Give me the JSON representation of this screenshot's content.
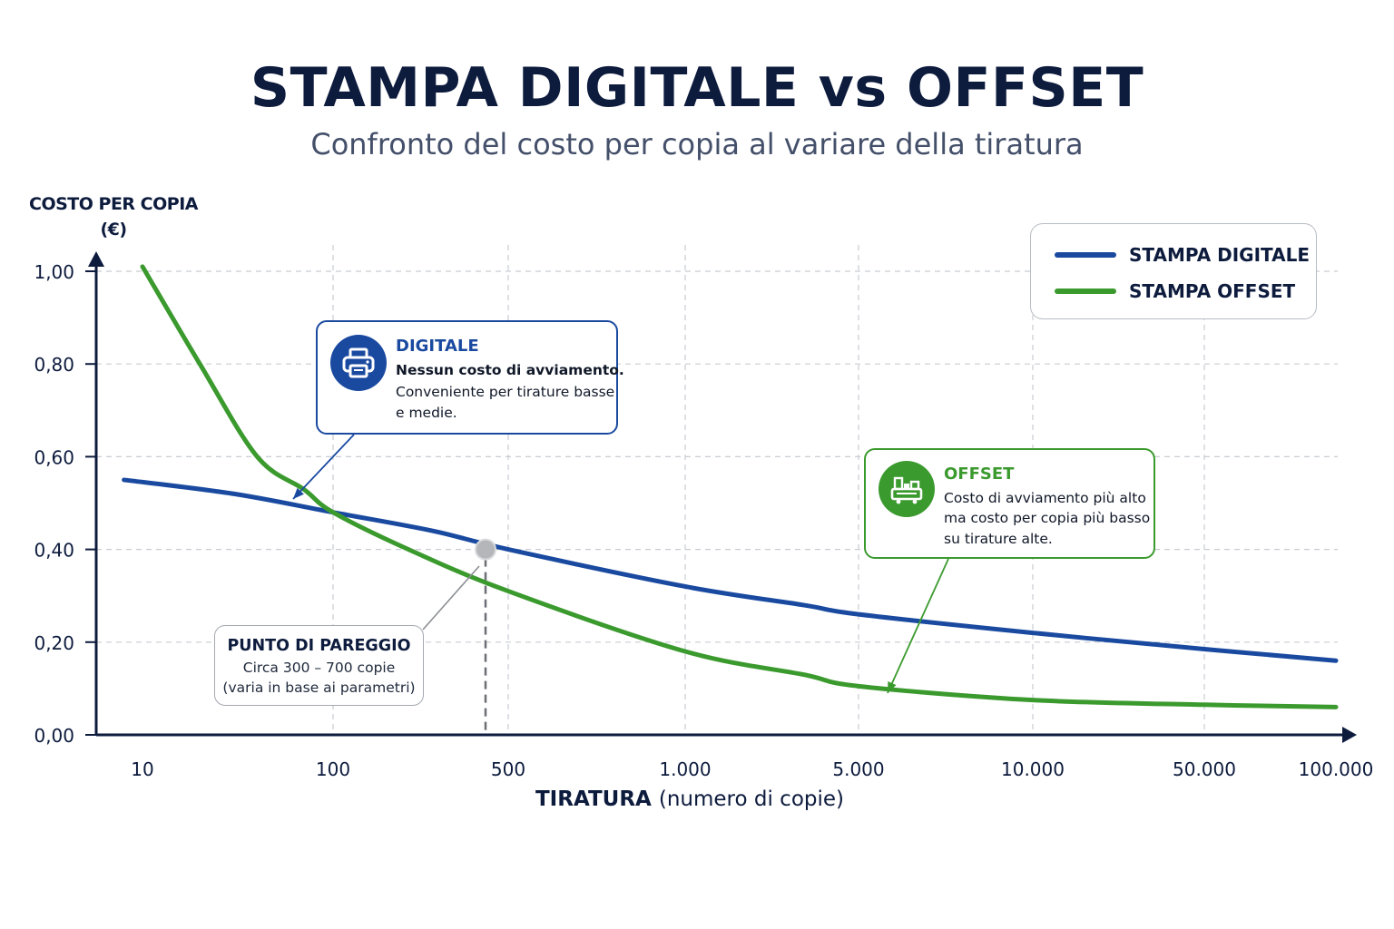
{
  "title": "STAMPA DIGITALE vs OFFSET",
  "subtitle": "Confronto del costo per copia al variare della tiratura",
  "chart_data": {
    "type": "line",
    "xlabel": "TIRATURA",
    "xlabel_unit": "(numero di copie)",
    "ylabel_line1": "COSTO PER COPIA",
    "ylabel_line2": "(€)",
    "y_ticks": [
      "0,00",
      "0,20",
      "0,40",
      "0,60",
      "0,80",
      "1,00"
    ],
    "y_tick_values": [
      0,
      0.2,
      0.4,
      0.6,
      0.8,
      1.0
    ],
    "ylim": [
      0,
      1.0
    ],
    "x_ticks": [
      "10",
      "100",
      "500",
      "1.000",
      "5.000",
      "10.000",
      "50.000",
      "100.000"
    ],
    "x_tick_values": [
      10,
      100,
      500,
      1000,
      5000,
      10000,
      50000,
      100000
    ],
    "grid": true,
    "legend_position": "top-right",
    "series": [
      {
        "name": "STAMPA DIGITALE",
        "color": "#1a4aa0",
        "points": [
          {
            "x": 8,
            "y": 0.55
          },
          {
            "x": 30,
            "y": 0.52
          },
          {
            "x": 100,
            "y": 0.48
          },
          {
            "x": 250,
            "y": 0.44
          },
          {
            "x": 500,
            "y": 0.4
          },
          {
            "x": 1000,
            "y": 0.32
          },
          {
            "x": 3000,
            "y": 0.28
          },
          {
            "x": 5000,
            "y": 0.26
          },
          {
            "x": 10000,
            "y": 0.22
          },
          {
            "x": 50000,
            "y": 0.185
          },
          {
            "x": 100000,
            "y": 0.16
          }
        ]
      },
      {
        "name": "STAMPA OFFSET",
        "color": "#3b9a2e",
        "points": [
          {
            "x": 10,
            "y": 1.01
          },
          {
            "x": 20,
            "y": 0.8
          },
          {
            "x": 40,
            "y": 0.6
          },
          {
            "x": 70,
            "y": 0.53
          },
          {
            "x": 100,
            "y": 0.48
          },
          {
            "x": 200,
            "y": 0.4
          },
          {
            "x": 500,
            "y": 0.31
          },
          {
            "x": 1000,
            "y": 0.18
          },
          {
            "x": 3000,
            "y": 0.13
          },
          {
            "x": 5000,
            "y": 0.105
          },
          {
            "x": 10000,
            "y": 0.075
          },
          {
            "x": 50000,
            "y": 0.065
          },
          {
            "x": 100000,
            "y": 0.06
          }
        ]
      }
    ],
    "break_even": {
      "x": 400,
      "y": 0.4
    }
  },
  "legend": {
    "digitale": "STAMPA DIGITALE",
    "offset": "STAMPA OFFSET"
  },
  "callouts": {
    "digitale": {
      "icon": "printer-icon",
      "title": "DIGITALE",
      "line1": "Nessun costo di avviamento.",
      "line2": "Conveniente per tirature basse",
      "line3": "e medie."
    },
    "offset": {
      "icon": "offset-press-icon",
      "title": "OFFSET",
      "line1": "Costo di avviamento più alto",
      "line2": "ma costo per copia più basso",
      "line3": "su tirature alte."
    },
    "pareggio": {
      "title": "PUNTO DI PAREGGIO",
      "line1": "Circa 300 – 700 copie",
      "line2": "(varia in base ai parametri)"
    }
  },
  "colors": {
    "digitale": "#1a4aa0",
    "offset": "#3b9a2e",
    "axis": "#0d1b3d",
    "grid": "#c8ccd2"
  }
}
